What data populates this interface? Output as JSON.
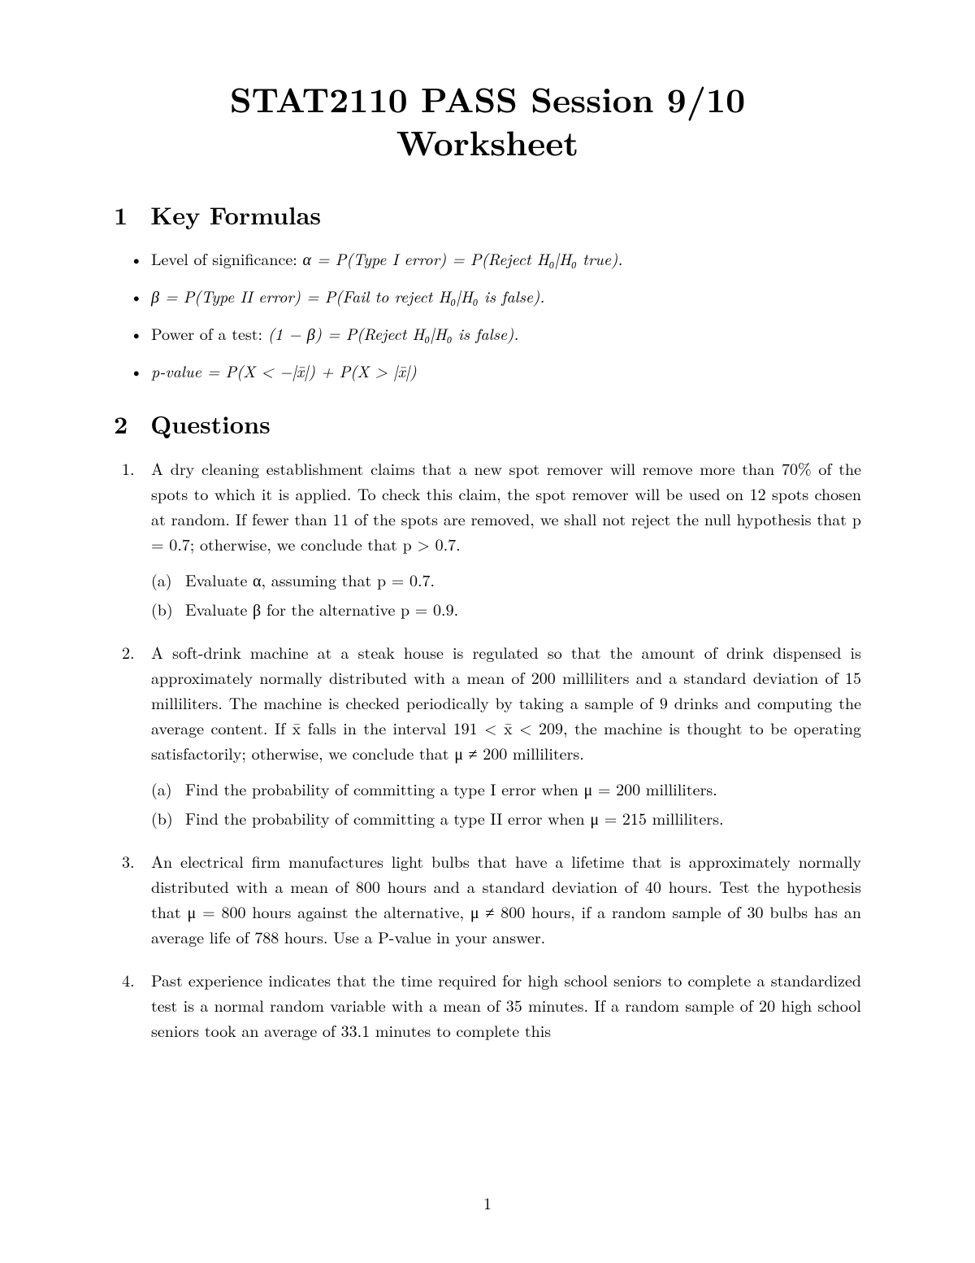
{
  "title_line1": "STAT2110 PASS Session 9/10",
  "title_line2": "Worksheet",
  "section1": {
    "num": "1",
    "label": "Key Formulas"
  },
  "section2": {
    "num": "2",
    "label": "Questions"
  },
  "formulas": {
    "f1_pre": "Level of significance: ",
    "f1_math": "α = P(Type I error) = P(Reject H₀|H₀ true).",
    "f2_math": "β = P(Type II error) = P(Fail to reject H₀|H₀ is false).",
    "f3_pre": "Power of a test: ",
    "f3_math": "(1 − β) = P(Reject H₀|H₀ is false).",
    "f4_math": "p-value = P(X < −|x̄|) + P(X > |x̄|)"
  },
  "q1": {
    "text": "A dry cleaning establishment claims that a new spot remover will remove more than 70% of the spots to which it is applied. To check this claim, the spot remover will be used on 12 spots chosen at random. If fewer than 11 of the spots are removed, we shall not reject the null hypothesis that p = 0.7; otherwise, we conclude that p > 0.7.",
    "a": "Evaluate α, assuming that p = 0.7.",
    "b": "Evaluate β for the alternative p = 0.9."
  },
  "q2": {
    "text": "A soft-drink machine at a steak house is regulated so that the amount of drink dispensed is approximately normally distributed with a mean of 200 milliliters and a standard deviation of 15 milliliters. The machine is checked periodically by taking a sample of 9 drinks and computing the average content. If x̄ falls in the interval 191 < x̄ < 209, the machine is thought to be operating satisfactorily; otherwise, we conclude that μ ≠ 200 milliliters.",
    "a": "Find the probability of committing a type I error when μ = 200 milliliters.",
    "b": "Find the probability of committing a type II error when μ = 215 milliliters."
  },
  "q3": {
    "text": "An electrical firm manufactures light bulbs that have a lifetime that is approximately normally distributed with a mean of 800 hours and a standard deviation of 40 hours. Test the hypothesis that μ = 800 hours against the alternative, μ ≠ 800 hours, if a random sample of 30 bulbs has an average life of 788 hours. Use a P-value in your answer."
  },
  "q4": {
    "text": "Past experience indicates that the time required for high school seniors to complete a standardized test is a normal random variable with a mean of 35 minutes. If a random sample of 20 high school seniors took an average of 33.1 minutes to complete this"
  },
  "page_number": "1"
}
